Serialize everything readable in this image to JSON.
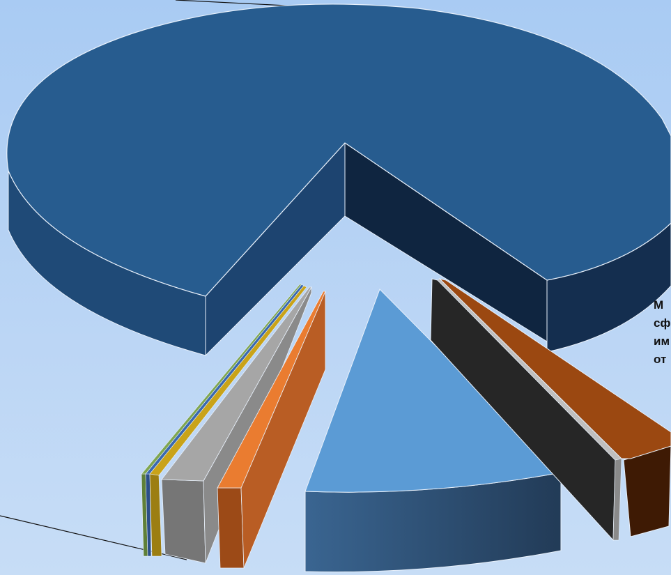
{
  "chart_data": {
    "type": "pie",
    "style": "3d-exploded",
    "slices": [
      {
        "value": 83.6,
        "color": "#275c8f",
        "side": "#1d4874",
        "dark": "#0e2238"
      },
      {
        "value": 0.3,
        "color": "#7fa650",
        "side": "#5f8038"
      },
      {
        "value": 0.3,
        "color": "#3a69b0",
        "side": "#2b4f88"
      },
      {
        "value": 0.8,
        "color": "#c9a319",
        "side": "#9c7e12"
      },
      {
        "value": 2.2,
        "color": "#a6a6a6",
        "side": "#7a7a7a"
      },
      {
        "value": 2.0,
        "color": "#ea7c30",
        "side": "#a4501c"
      },
      {
        "value": 5.9,
        "color": "#5b9bd5",
        "side": "#2f4f70"
      },
      {
        "value": 3.4,
        "color": "#2b2b2b",
        "side": "#1b1b1b"
      },
      {
        "value": 0.3,
        "color": "#bfbfbf",
        "side": "#8a8a8a"
      },
      {
        "value": 1.2,
        "color": "#9b4811",
        "side": "#3e1a04"
      }
    ],
    "legend": "none",
    "grid": false
  },
  "labels": {
    "right_cut_label": [
      "М",
      "сф",
      "им",
      "от"
    ]
  }
}
